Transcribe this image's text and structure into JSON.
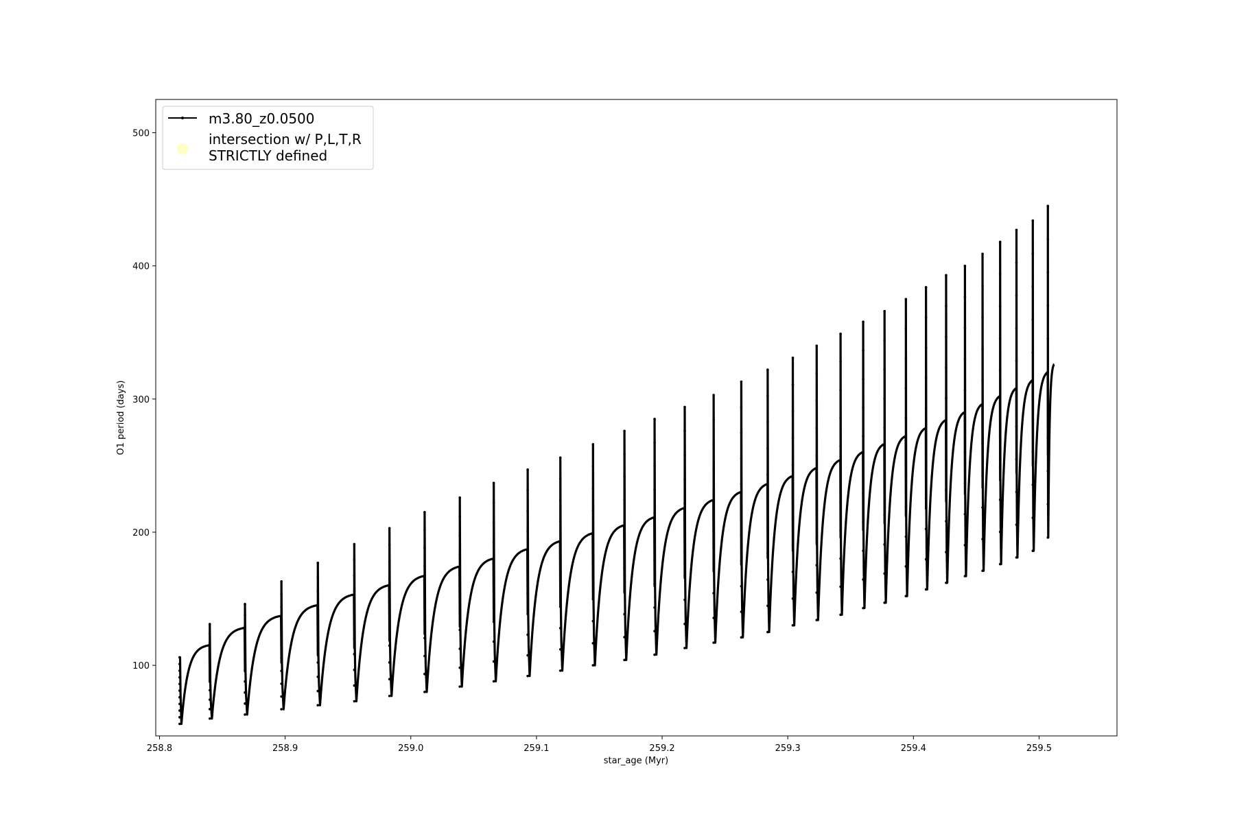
{
  "chart_data": {
    "type": "line",
    "title": "",
    "xlabel": "star_age (Myr)",
    "ylabel": "O1 period (days)",
    "xlim": [
      258.797,
      259.562
    ],
    "ylim": [
      47,
      525
    ],
    "x_ticks": [
      258.8,
      258.9,
      259.0,
      259.1,
      259.2,
      259.3,
      259.4,
      259.5
    ],
    "x_tick_labels": [
      "258.8",
      "258.9",
      "259.0",
      "259.1",
      "259.2",
      "259.3",
      "259.4",
      "259.5"
    ],
    "y_ticks": [
      100,
      200,
      300,
      400,
      500
    ],
    "y_tick_labels": [
      "100",
      "200",
      "300",
      "400",
      "500"
    ],
    "grid": false,
    "legend_placement": "top-left",
    "series": [
      {
        "name": "m3.80_z0.0500",
        "color": "#000000",
        "marker": "dot",
        "cycles": [
          {
            "t_start": 258.816,
            "t_end": 258.84,
            "min": 56,
            "max": 115,
            "spike": 106
          },
          {
            "t_start": 258.84,
            "t_end": 258.868,
            "min": 60,
            "max": 128,
            "spike": 131
          },
          {
            "t_start": 258.868,
            "t_end": 258.897,
            "min": 63,
            "max": 137,
            "spike": 146
          },
          {
            "t_start": 258.897,
            "t_end": 258.926,
            "min": 67,
            "max": 145,
            "spike": 163
          },
          {
            "t_start": 258.926,
            "t_end": 258.955,
            "min": 70,
            "max": 153,
            "spike": 177
          },
          {
            "t_start": 258.955,
            "t_end": 258.983,
            "min": 73,
            "max": 160,
            "spike": 191
          },
          {
            "t_start": 258.983,
            "t_end": 259.011,
            "min": 77,
            "max": 167,
            "spike": 203
          },
          {
            "t_start": 259.011,
            "t_end": 259.039,
            "min": 80,
            "max": 174,
            "spike": 215
          },
          {
            "t_start": 259.039,
            "t_end": 259.066,
            "min": 84,
            "max": 180,
            "spike": 226
          },
          {
            "t_start": 259.066,
            "t_end": 259.093,
            "min": 88,
            "max": 187,
            "spike": 237
          },
          {
            "t_start": 259.093,
            "t_end": 259.119,
            "min": 92,
            "max": 193,
            "spike": 247
          },
          {
            "t_start": 259.119,
            "t_end": 259.145,
            "min": 96,
            "max": 199,
            "spike": 256
          },
          {
            "t_start": 259.145,
            "t_end": 259.17,
            "min": 100,
            "max": 205,
            "spike": 266
          },
          {
            "t_start": 259.17,
            "t_end": 259.194,
            "min": 104,
            "max": 211,
            "spike": 276
          },
          {
            "t_start": 259.194,
            "t_end": 259.218,
            "min": 108,
            "max": 218,
            "spike": 285
          },
          {
            "t_start": 259.218,
            "t_end": 259.241,
            "min": 113,
            "max": 224,
            "spike": 294
          },
          {
            "t_start": 259.241,
            "t_end": 259.263,
            "min": 117,
            "max": 230,
            "spike": 303
          },
          {
            "t_start": 259.263,
            "t_end": 259.284,
            "min": 121,
            "max": 236,
            "spike": 313
          },
          {
            "t_start": 259.284,
            "t_end": 259.304,
            "min": 125,
            "max": 242,
            "spike": 322
          },
          {
            "t_start": 259.304,
            "t_end": 259.323,
            "min": 130,
            "max": 248,
            "spike": 331
          },
          {
            "t_start": 259.323,
            "t_end": 259.342,
            "min": 134,
            "max": 254,
            "spike": 340
          },
          {
            "t_start": 259.342,
            "t_end": 259.36,
            "min": 138,
            "max": 260,
            "spike": 349
          },
          {
            "t_start": 259.36,
            "t_end": 259.377,
            "min": 143,
            "max": 266,
            "spike": 358
          },
          {
            "t_start": 259.377,
            "t_end": 259.394,
            "min": 147,
            "max": 272,
            "spike": 366
          },
          {
            "t_start": 259.394,
            "t_end": 259.41,
            "min": 152,
            "max": 278,
            "spike": 375
          },
          {
            "t_start": 259.41,
            "t_end": 259.426,
            "min": 157,
            "max": 284,
            "spike": 384
          },
          {
            "t_start": 259.426,
            "t_end": 259.441,
            "min": 162,
            "max": 290,
            "spike": 393
          },
          {
            "t_start": 259.441,
            "t_end": 259.455,
            "min": 167,
            "max": 296,
            "spike": 400
          },
          {
            "t_start": 259.455,
            "t_end": 259.469,
            "min": 171,
            "max": 302,
            "spike": 409
          },
          {
            "t_start": 259.469,
            "t_end": 259.482,
            "min": 176,
            "max": 308,
            "spike": 418
          },
          {
            "t_start": 259.482,
            "t_end": 259.495,
            "min": 181,
            "max": 314,
            "spike": 427
          },
          {
            "t_start": 259.495,
            "t_end": 259.507,
            "min": 186,
            "max": 320,
            "spike": 434
          },
          {
            "t_start": 259.507,
            "t_end": 259.512,
            "min": 196,
            "max": 326,
            "spike": 445
          }
        ]
      },
      {
        "name": "intersection w/ P,L,T,R\nSTRICTLY defined",
        "color": "#ffffc0",
        "marker": "circle",
        "points": []
      }
    ]
  }
}
